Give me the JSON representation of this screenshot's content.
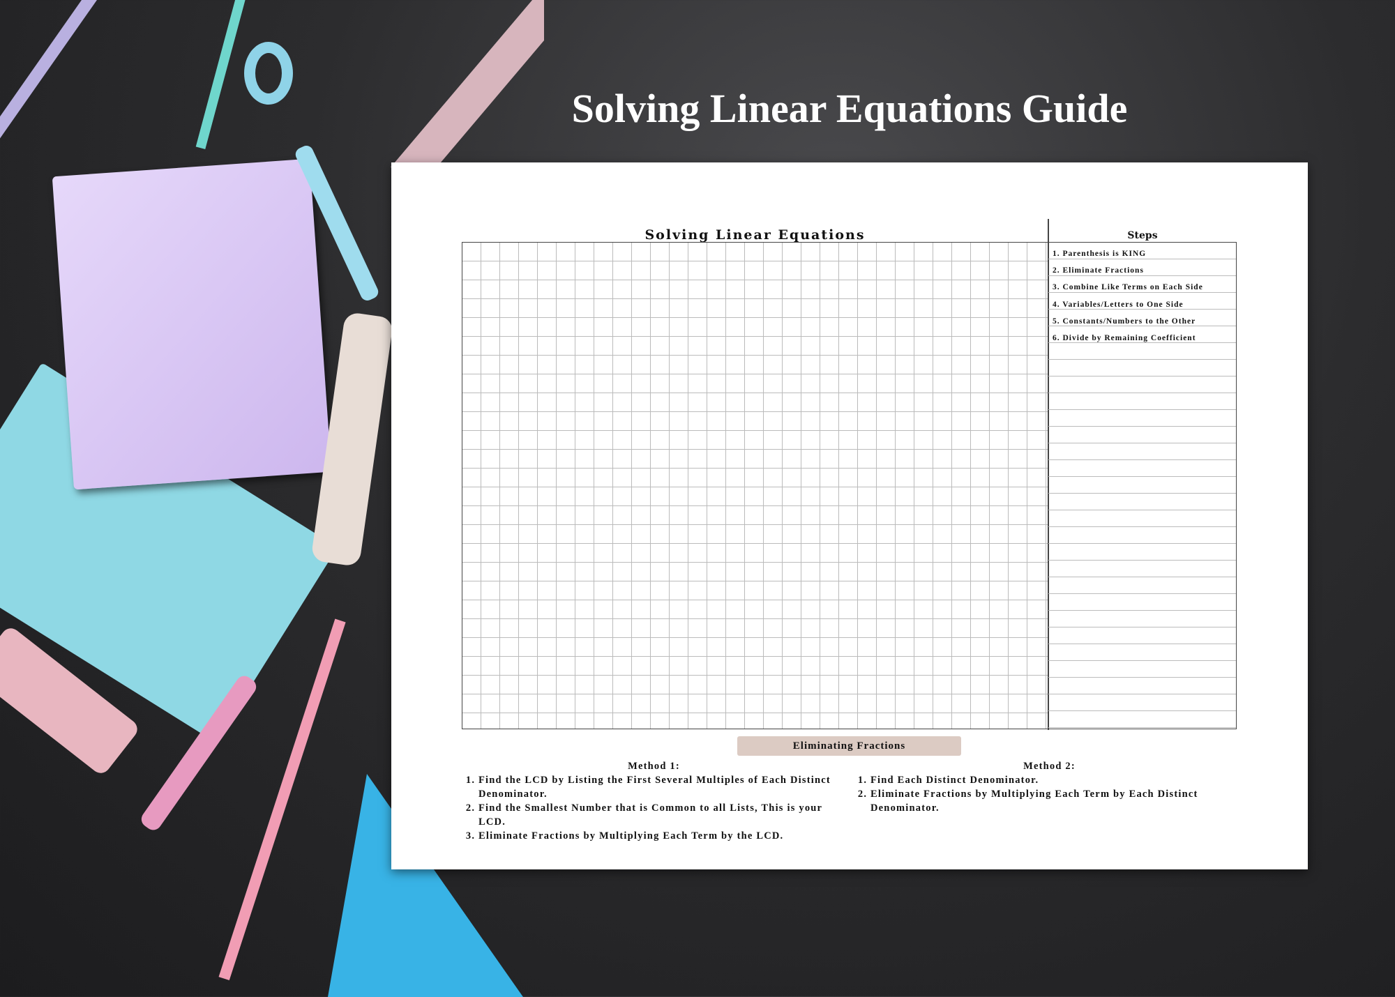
{
  "header": {
    "title": "Solving Linear Equations Guide"
  },
  "worksheet": {
    "grid_title": "Solving Linear Equations",
    "steps_title": "Steps",
    "steps": [
      "1. Parenthesis is KING",
      "2. Eliminate Fractions",
      "3. Combine Like Terms on Each Side",
      "4. Variables/Letters to One Side",
      "5. Constants/Numbers to the Other",
      "6. Divide by Remaining Coefficient"
    ],
    "banner": "Eliminating Fractions",
    "method1": {
      "title": "Method 1:",
      "items": [
        "Find the LCD by Listing the First Several Multiples of Each Distinct Denominator.",
        "Find the Smallest Number that is Common to all Lists, This is your LCD.",
        "Eliminate Fractions by Multiplying Each Term by the LCD."
      ]
    },
    "method2": {
      "title": "Method 2:",
      "items": [
        "Find Each Distinct Denominator.",
        "Eliminate Fractions by Multiplying Each Term by Each Distinct Denominator."
      ]
    }
  },
  "colors": {
    "banner": "#dccbc3",
    "background": "#2c2c2e"
  }
}
